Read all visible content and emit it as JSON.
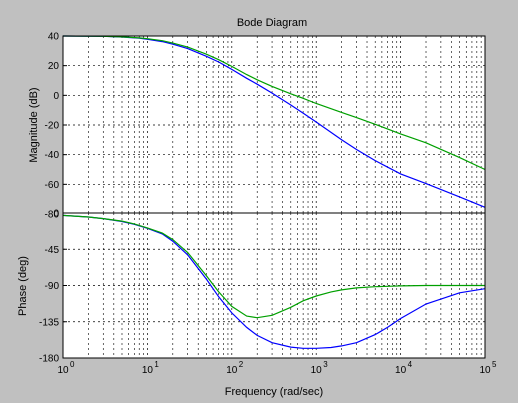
{
  "chart_data": {
    "type": "line",
    "title": "Bode Diagram",
    "xlabel": "Frequency  (rad/sec)",
    "x_scale": "log",
    "xlim": [
      1,
      100000
    ],
    "x_ticks": [
      1,
      10,
      100,
      1000,
      10000,
      100000
    ],
    "x_tick_labels": [
      {
        "base": "10",
        "exp": "0"
      },
      {
        "base": "10",
        "exp": "1"
      },
      {
        "base": "10",
        "exp": "2"
      },
      {
        "base": "10",
        "exp": "3"
      },
      {
        "base": "10",
        "exp": "4"
      },
      {
        "base": "10",
        "exp": "5"
      }
    ],
    "grid": true,
    "colors": {
      "series_1": "#0000ff",
      "series_2": "#00a000"
    },
    "subplots": [
      {
        "name": "magnitude",
        "ylabel": "Magnitude (dB)",
        "ylim": [
          -80,
          40
        ],
        "y_ticks": [
          40,
          20,
          0,
          -20,
          -40,
          -60,
          -80
        ],
        "series": [
          {
            "color": "#0000ff",
            "x": [
              1,
              3,
              5,
              8,
              10,
              15,
              20,
              30,
              50,
              70,
              100,
              150,
              200,
              300,
              500,
              700,
              1000,
              2000,
              3000,
              5000,
              10000,
              20000,
              50000,
              100000
            ],
            "y": [
              40,
              39.8,
              39.3,
              38.5,
              37.8,
              36.2,
              34.5,
              31.5,
              26.3,
              22.5,
              17.5,
              11.5,
              7.5,
              1.5,
              -6.5,
              -12,
              -18,
              -30,
              -36.5,
              -44,
              -53,
              -59.5,
              -68.5,
              -75.5
            ]
          },
          {
            "color": "#00a000",
            "x": [
              1,
              3,
              5,
              8,
              10,
              15,
              20,
              30,
              50,
              70,
              100,
              150,
              200,
              300,
              500,
              700,
              1000,
              2000,
              3000,
              5000,
              10000,
              20000,
              50000,
              100000
            ],
            "y": [
              40,
              39.8,
              39.4,
              38.7,
              38.2,
              36.8,
              35.2,
              32.5,
              27.7,
              24,
              19.5,
              14,
              10.5,
              6,
              1,
              -2,
              -5.5,
              -11.5,
              -15,
              -19.5,
              -26,
              -32,
              -42,
              -50
            ]
          }
        ]
      },
      {
        "name": "phase",
        "ylabel": "Phase (deg)",
        "ylim": [
          -180,
          0
        ],
        "y_ticks": [
          0,
          -45,
          -90,
          -135,
          -180
        ],
        "series": [
          {
            "color": "#0000ff",
            "x": [
              1,
              2,
              3,
              5,
              7,
              10,
              15,
              20,
              30,
              50,
              70,
              100,
              150,
              200,
              300,
              500,
              700,
              1000,
              1500,
              2000,
              3000,
              5000,
              7000,
              10000,
              20000,
              50000,
              100000
            ],
            "y": [
              -3,
              -5,
              -7,
              -10.5,
              -14,
              -19,
              -26,
              -35,
              -52,
              -82,
              -104,
              -124,
              -142,
              -152,
              -161,
              -166.5,
              -168,
              -168,
              -167,
              -165,
              -161,
              -151,
              -142,
              -131,
              -113,
              -99,
              -94
            ]
          },
          {
            "color": "#00a000",
            "x": [
              1,
              2,
              3,
              5,
              7,
              10,
              15,
              20,
              30,
              50,
              70,
              100,
              150,
              200,
              300,
              500,
              700,
              1000,
              1500,
              2000,
              3000,
              5000,
              7000,
              10000,
              20000,
              50000,
              100000
            ],
            "y": [
              -3,
              -5,
              -7,
              -10,
              -13.5,
              -18.5,
              -25,
              -33,
              -49,
              -78,
              -98,
              -116,
              -128,
              -130,
              -127,
              -117,
              -109,
              -103,
              -98,
              -95.5,
              -93,
              -91.5,
              -91,
              -90.5,
              -90,
              -90,
              -90
            ]
          }
        ]
      }
    ]
  }
}
